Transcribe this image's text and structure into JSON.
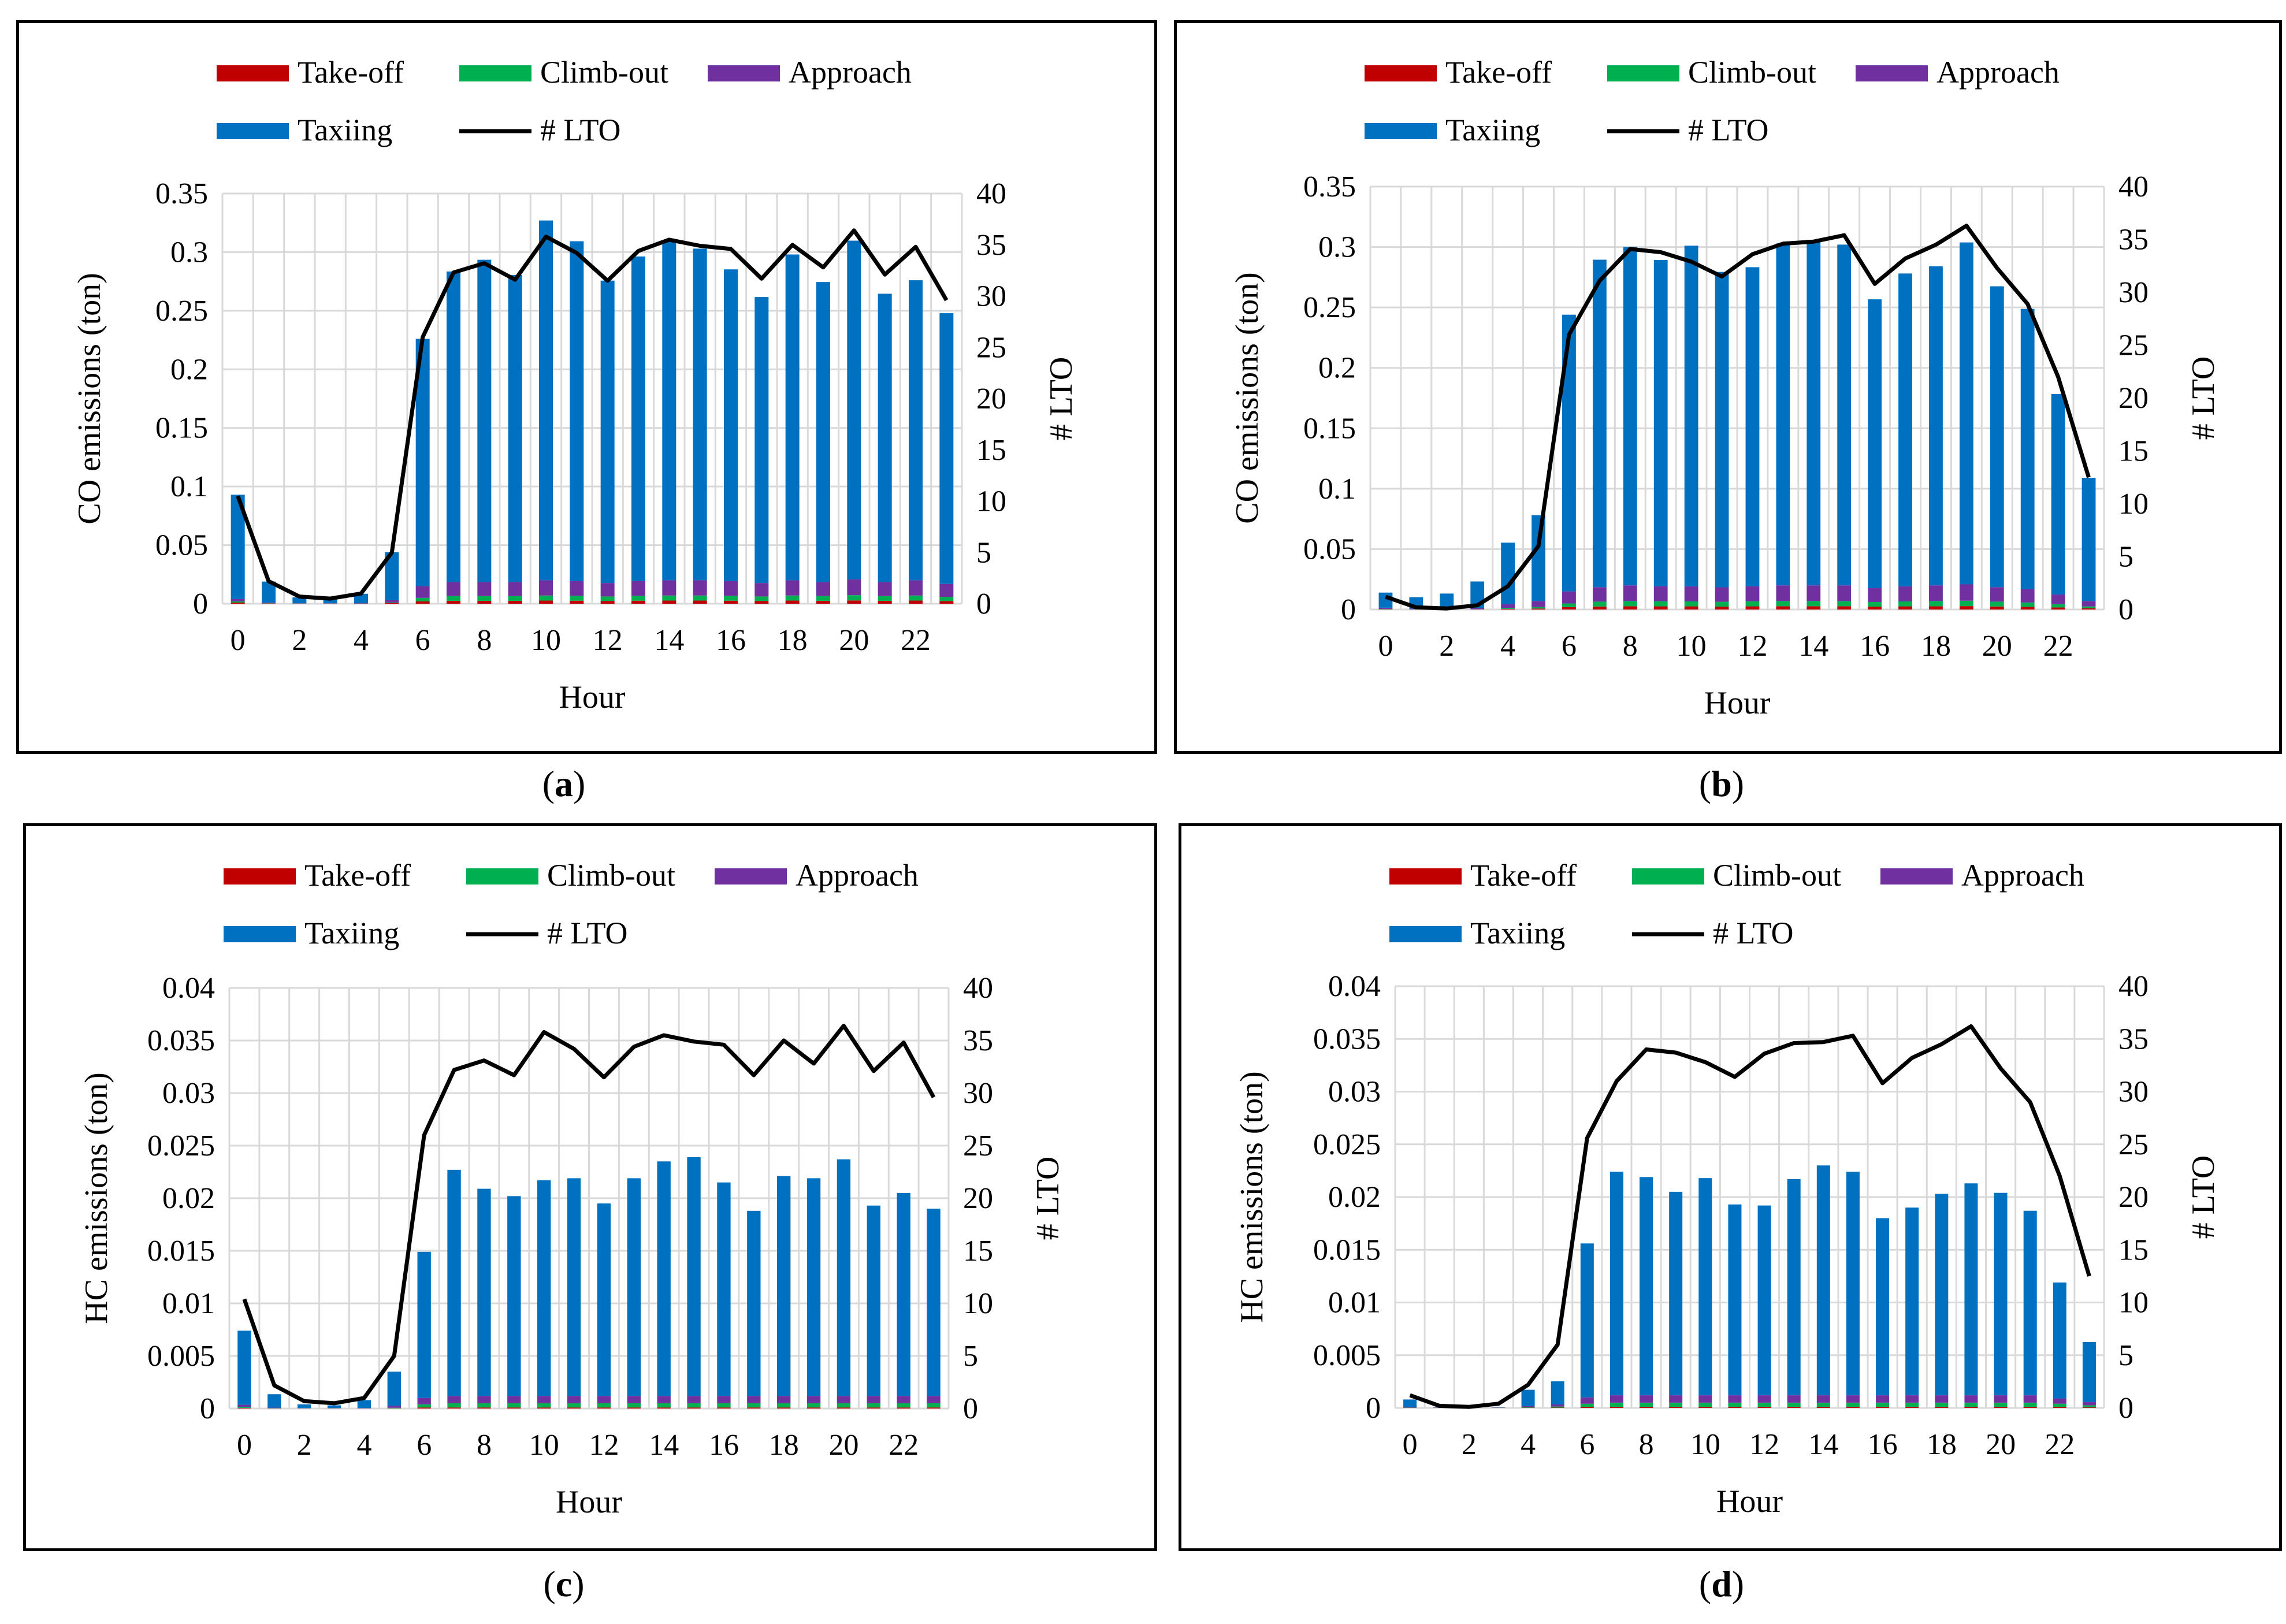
{
  "colors": {
    "takeoff": "#c00000",
    "climbout": "#00b050",
    "approach": "#7030a0",
    "taxiing": "#0070c0",
    "lto": "#000000",
    "grid": "#d9d9d9"
  },
  "chart_data": [
    {
      "type": "bar",
      "panel": "a",
      "caption": {
        "open": "(",
        "letter": "a",
        "close": ")"
      },
      "legend": [
        "Take-off",
        "Climb-out",
        "Approach",
        "Taxiing",
        "# LTO"
      ],
      "xlabel": "Hour",
      "ylabel": "CO emissions (ton)",
      "y2label": "# LTO",
      "ylim": [
        0,
        0.35
      ],
      "yticks": [
        "0",
        "0.05",
        "0.1",
        "0.15",
        "0.2",
        "0.25",
        "0.3",
        "0.35"
      ],
      "y2lim": [
        0,
        40
      ],
      "y2ticks": [
        "0",
        "5",
        "10",
        "15",
        "20",
        "25",
        "30",
        "35",
        "40"
      ],
      "xticks": [
        "0",
        "2",
        "4",
        "6",
        "8",
        "10",
        "12",
        "14",
        "16",
        "18",
        "20",
        "22"
      ],
      "x": [
        0,
        1,
        2,
        3,
        4,
        5,
        6,
        7,
        8,
        9,
        10,
        11,
        12,
        13,
        14,
        15,
        16,
        17,
        18,
        19,
        20,
        21,
        22,
        23
      ],
      "grid": true,
      "legend_position": "top",
      "series": [
        {
          "name": "Take-off",
          "values": [
            0.001,
            0.0002,
            0.0001,
            0.0001,
            0.0001,
            0.0005,
            0.002,
            0.0025,
            0.0025,
            0.0025,
            0.0027,
            0.0026,
            0.0024,
            0.0026,
            0.0027,
            0.0027,
            0.0026,
            0.0024,
            0.0027,
            0.0025,
            0.0028,
            0.0025,
            0.0027,
            0.0023
          ]
        },
        {
          "name": "Climb-out",
          "values": [
            0.001,
            0.0002,
            0.0001,
            0.0001,
            0.0001,
            0.0005,
            0.003,
            0.004,
            0.004,
            0.004,
            0.0043,
            0.0042,
            0.0038,
            0.0042,
            0.0043,
            0.0043,
            0.0042,
            0.0038,
            0.0043,
            0.004,
            0.0045,
            0.004,
            0.0043,
            0.0036
          ]
        },
        {
          "name": "Approach",
          "values": [
            0.002,
            0.0005,
            0.0002,
            0.0002,
            0.0003,
            0.002,
            0.01,
            0.012,
            0.012,
            0.012,
            0.013,
            0.0125,
            0.0115,
            0.0125,
            0.013,
            0.013,
            0.0125,
            0.0115,
            0.013,
            0.012,
            0.0135,
            0.012,
            0.013,
            0.011
          ]
        },
        {
          "name": "Taxiing",
          "values": [
            0.089,
            0.018,
            0.005,
            0.004,
            0.008,
            0.041,
            0.211,
            0.265,
            0.275,
            0.262,
            0.307,
            0.29,
            0.258,
            0.277,
            0.29,
            0.283,
            0.266,
            0.244,
            0.278,
            0.256,
            0.289,
            0.246,
            0.256,
            0.231
          ]
        },
        {
          "name": "# LTO",
          "axis": "right",
          "values": [
            10.5,
            2.2,
            0.7,
            0.5,
            1,
            5,
            26,
            32.3,
            33.2,
            31.6,
            35.8,
            34.2,
            31.5,
            34.4,
            35.5,
            34.9,
            34.6,
            31.7,
            35,
            32.8,
            36.4,
            32.1,
            34.8,
            29.6
          ]
        }
      ]
    },
    {
      "type": "bar",
      "panel": "b",
      "caption": {
        "open": "(",
        "letter": "b",
        "close": ")"
      },
      "legend": [
        "Take-off",
        "Climb-out",
        "Approach",
        "Taxiing",
        "# LTO"
      ],
      "xlabel": "Hour",
      "ylabel": "CO emissions (ton)",
      "y2label": "# LTO",
      "ylim": [
        0,
        0.35
      ],
      "yticks": [
        "0",
        "0.05",
        "0.1",
        "0.15",
        "0.2",
        "0.25",
        "0.3",
        "0.35"
      ],
      "y2lim": [
        0,
        40
      ],
      "y2ticks": [
        "0",
        "5",
        "10",
        "15",
        "20",
        "25",
        "30",
        "35",
        "40"
      ],
      "xticks": [
        "0",
        "2",
        "4",
        "6",
        "8",
        "10",
        "12",
        "14",
        "16",
        "18",
        "20",
        "22"
      ],
      "x": [
        0,
        1,
        2,
        3,
        4,
        5,
        6,
        7,
        8,
        9,
        10,
        11,
        12,
        13,
        14,
        15,
        16,
        17,
        18,
        19,
        20,
        21,
        22,
        23
      ],
      "grid": true,
      "legend_position": "top",
      "series": [
        {
          "name": "Take-off",
          "values": [
            0.0002,
            0.0001,
            0.0001,
            0.0001,
            0.0005,
            0.0008,
            0.002,
            0.0025,
            0.0027,
            0.0026,
            0.0026,
            0.0024,
            0.0026,
            0.0027,
            0.0027,
            0.0027,
            0.0024,
            0.0026,
            0.0027,
            0.0028,
            0.0025,
            0.0022,
            0.0017,
            0.001
          ]
        },
        {
          "name": "Climb-out",
          "values": [
            0.0003,
            0.0001,
            0.0001,
            0.0001,
            0.0008,
            0.0012,
            0.003,
            0.004,
            0.0043,
            0.0042,
            0.0041,
            0.004,
            0.0042,
            0.0043,
            0.0043,
            0.0043,
            0.0038,
            0.0041,
            0.0043,
            0.0045,
            0.004,
            0.0036,
            0.0027,
            0.0015
          ]
        },
        {
          "name": "Approach",
          "values": [
            0.001,
            0.0005,
            0.0005,
            0.001,
            0.003,
            0.005,
            0.01,
            0.012,
            0.013,
            0.0125,
            0.0124,
            0.012,
            0.0125,
            0.013,
            0.013,
            0.013,
            0.0115,
            0.0124,
            0.013,
            0.0135,
            0.012,
            0.011,
            0.008,
            0.0045
          ]
        },
        {
          "name": "Taxiing",
          "values": [
            0.0125,
            0.0095,
            0.0125,
            0.022,
            0.051,
            0.071,
            0.229,
            0.271,
            0.28,
            0.27,
            0.282,
            0.261,
            0.264,
            0.283,
            0.286,
            0.282,
            0.239,
            0.259,
            0.264,
            0.283,
            0.249,
            0.232,
            0.166,
            0.102
          ]
        },
        {
          "name": "# LTO",
          "axis": "right",
          "values": [
            1.2,
            0.2,
            0.1,
            0.4,
            2.2,
            6,
            26,
            31.1,
            34.1,
            33.8,
            32.9,
            31.5,
            33.6,
            34.6,
            34.8,
            35.4,
            30.8,
            33.2,
            34.5,
            36.3,
            32.3,
            28.9,
            22,
            12.5
          ]
        }
      ]
    },
    {
      "type": "bar",
      "panel": "c",
      "caption": {
        "open": "(",
        "letter": "c",
        "close": ")"
      },
      "legend": [
        "Take-off",
        "Climb-out",
        "Approach",
        "Taxiing",
        "# LTO"
      ],
      "xlabel": "Hour",
      "ylabel": "HC emissions (ton)",
      "y2label": "# LTO",
      "ylim": [
        0,
        0.04
      ],
      "yticks": [
        "0",
        "0.005",
        "0.01",
        "0.015",
        "0.02",
        "0.025",
        "0.03",
        "0.035",
        "0.04"
      ],
      "y2lim": [
        0,
        40
      ],
      "y2ticks": [
        "0",
        "5",
        "10",
        "15",
        "20",
        "25",
        "30",
        "35",
        "40"
      ],
      "xticks": [
        "0",
        "2",
        "4",
        "6",
        "8",
        "10",
        "12",
        "14",
        "16",
        "18",
        "20",
        "22"
      ],
      "x": [
        0,
        1,
        2,
        3,
        4,
        5,
        6,
        7,
        8,
        9,
        10,
        11,
        12,
        13,
        14,
        15,
        16,
        17,
        18,
        19,
        20,
        21,
        22,
        23
      ],
      "grid": true,
      "legend_position": "top",
      "series": [
        {
          "name": "Take-off",
          "values": [
            5e-05,
            1e-05,
            1e-05,
            1e-05,
            1e-05,
            2e-05,
            0.0001,
            0.0001,
            0.0001,
            0.0001,
            0.0001,
            0.0001,
            0.0001,
            0.0001,
            0.0001,
            0.0001,
            0.0001,
            0.0001,
            0.0001,
            0.0001,
            0.0001,
            0.0001,
            0.0001,
            0.0001
          ]
        },
        {
          "name": "Climb-out",
          "values": [
            0.0001,
            2e-05,
            1e-05,
            1e-05,
            1e-05,
            5e-05,
            0.0003,
            0.0004,
            0.0004,
            0.0004,
            0.0004,
            0.0004,
            0.0004,
            0.0004,
            0.0004,
            0.0004,
            0.0004,
            0.0004,
            0.0004,
            0.0004,
            0.0004,
            0.0004,
            0.0004,
            0.0004
          ]
        },
        {
          "name": "Approach",
          "values": [
            0.0002,
            5e-05,
            2e-05,
            2e-05,
            3e-05,
            0.0002,
            0.0006,
            0.0007,
            0.0007,
            0.0007,
            0.0007,
            0.0007,
            0.0007,
            0.0007,
            0.0007,
            0.0007,
            0.0007,
            0.0007,
            0.0007,
            0.0007,
            0.0007,
            0.0007,
            0.0007,
            0.0007
          ]
        },
        {
          "name": "Taxiing",
          "values": [
            0.00705,
            0.00128,
            0.00036,
            0.00026,
            0.00075,
            0.00323,
            0.0139,
            0.0215,
            0.0197,
            0.019,
            0.0205,
            0.0207,
            0.0183,
            0.0207,
            0.0223,
            0.0227,
            0.0203,
            0.0176,
            0.0209,
            0.0207,
            0.0225,
            0.0181,
            0.0193,
            0.0178
          ]
        },
        {
          "name": "# LTO",
          "axis": "right",
          "values": [
            10.4,
            2.2,
            0.7,
            0.5,
            1,
            5,
            26,
            32.2,
            33.1,
            31.7,
            35.8,
            34.2,
            31.5,
            34.4,
            35.5,
            34.9,
            34.6,
            31.7,
            35,
            32.8,
            36.4,
            32.1,
            34.8,
            29.6
          ]
        }
      ]
    },
    {
      "type": "bar",
      "panel": "d",
      "caption": {
        "open": "(",
        "letter": "d",
        "close": ")"
      },
      "legend": [
        "Take-off",
        "Climb-out",
        "Approach",
        "Taxiing",
        "# LTO"
      ],
      "xlabel": "Hour",
      "ylabel": "HC emissions (ton)",
      "y2label": "# LTO",
      "ylim": [
        0,
        0.04
      ],
      "yticks": [
        "0",
        "0.005",
        "0.01",
        "0.015",
        "0.02",
        "0.025",
        "0.03",
        "0.035",
        "0.04"
      ],
      "y2lim": [
        0,
        40
      ],
      "y2ticks": [
        "0",
        "5",
        "10",
        "15",
        "20",
        "25",
        "30",
        "35",
        "40"
      ],
      "xticks": [
        "0",
        "2",
        "4",
        "6",
        "8",
        "10",
        "12",
        "14",
        "16",
        "18",
        "20",
        "22"
      ],
      "x": [
        0,
        1,
        2,
        3,
        4,
        5,
        6,
        7,
        8,
        9,
        10,
        11,
        12,
        13,
        14,
        15,
        16,
        17,
        18,
        19,
        20,
        21,
        22,
        23
      ],
      "grid": true,
      "legend_position": "top",
      "series": [
        {
          "name": "Take-off",
          "values": [
            1e-05,
            1e-05,
            1e-05,
            1e-05,
            2e-05,
            3e-05,
            0.0001,
            0.0001,
            0.0001,
            0.0001,
            0.0001,
            0.0001,
            0.0001,
            0.0001,
            0.0001,
            0.0001,
            0.0001,
            0.0001,
            0.0001,
            0.0001,
            0.0001,
            0.0001,
            0.0001,
            5e-05
          ]
        },
        {
          "name": "Climb-out",
          "values": [
            2e-05,
            1e-05,
            1e-05,
            1e-05,
            5e-05,
            0.0001,
            0.0003,
            0.0004,
            0.0004,
            0.0004,
            0.0004,
            0.0004,
            0.0004,
            0.0004,
            0.0004,
            0.0004,
            0.0004,
            0.0004,
            0.0004,
            0.0004,
            0.0004,
            0.0004,
            0.0003,
            0.0002
          ]
        },
        {
          "name": "Approach",
          "values": [
            5e-05,
            2e-05,
            2e-05,
            2e-05,
            0.0001,
            0.0002,
            0.0006,
            0.0007,
            0.0007,
            0.0007,
            0.0007,
            0.0007,
            0.0007,
            0.0007,
            0.0007,
            0.0007,
            0.0007,
            0.0007,
            0.0007,
            0.0007,
            0.0007,
            0.0007,
            0.0005,
            0.0003
          ]
        },
        {
          "name": "Taxiing",
          "values": [
            0.00072,
            2e-05,
            2e-05,
            2e-05,
            0.00155,
            0.0022,
            0.0146,
            0.0212,
            0.0207,
            0.0193,
            0.0206,
            0.0181,
            0.018,
            0.0205,
            0.0218,
            0.0212,
            0.0168,
            0.0178,
            0.0191,
            0.0201,
            0.0192,
            0.0175,
            0.011,
            0.0057
          ]
        },
        {
          "name": "# LTO",
          "axis": "right",
          "values": [
            1.2,
            0.2,
            0.1,
            0.4,
            2.2,
            6,
            25.6,
            31,
            34,
            33.7,
            32.8,
            31.4,
            33.6,
            34.6,
            34.7,
            35.3,
            30.8,
            33.2,
            34.5,
            36.2,
            32.2,
            29,
            22,
            12.5
          ]
        }
      ]
    }
  ]
}
